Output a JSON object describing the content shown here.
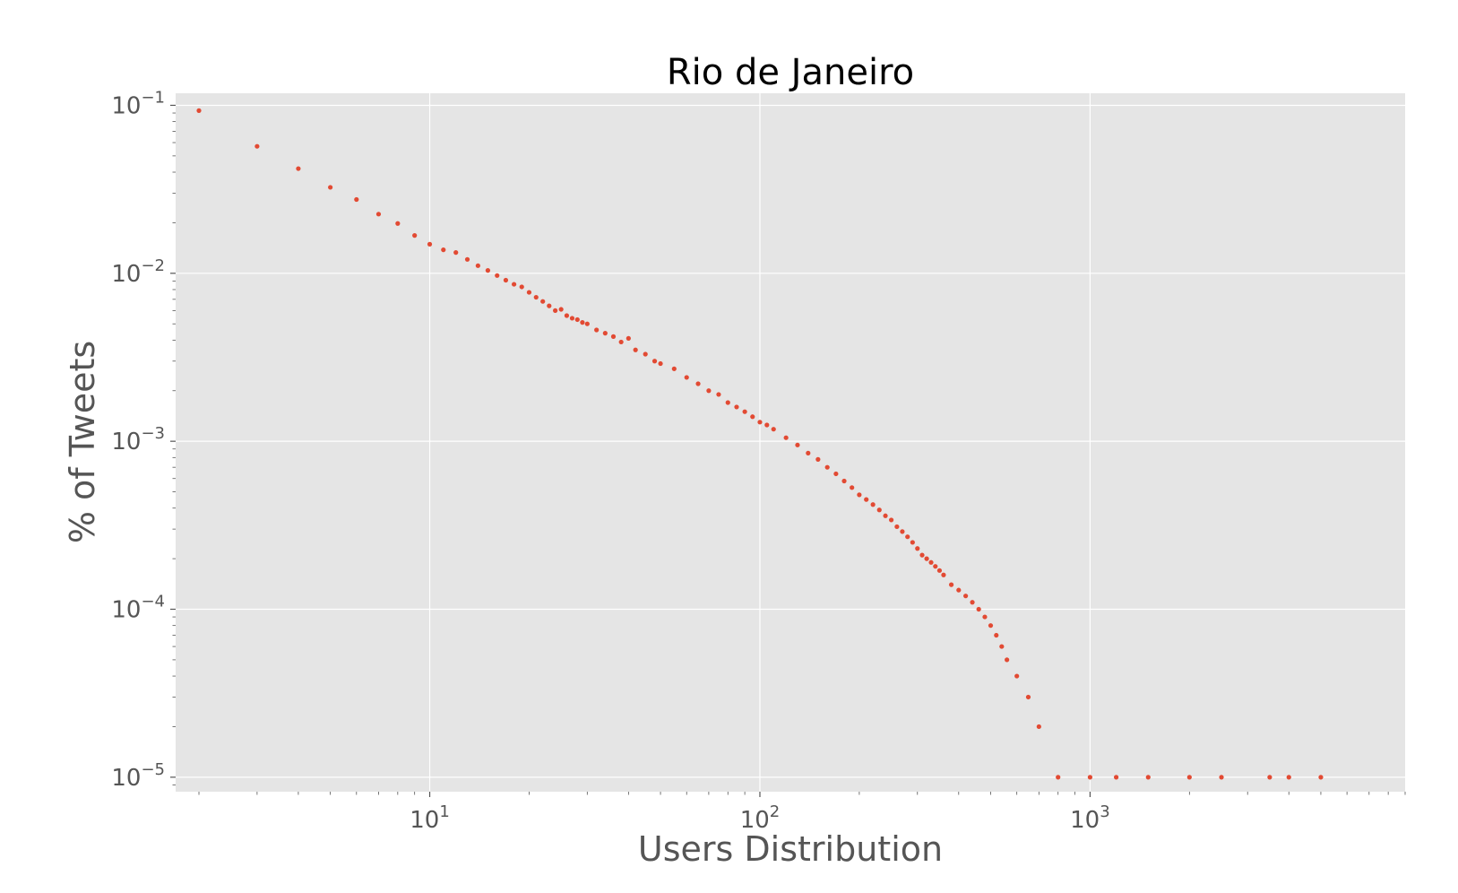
{
  "chart_data": {
    "type": "scatter",
    "title": "Rio de Janeiro",
    "xlabel": "Users Distribution",
    "ylabel": "% of Tweets",
    "xscale": "log",
    "yscale": "log",
    "xlim": [
      1.7,
      9000
    ],
    "ylim": [
      8.2e-06,
      0.118
    ],
    "x_ticks": [
      {
        "value": 10,
        "base": "10",
        "exp": "1"
      },
      {
        "value": 100,
        "base": "10",
        "exp": "2"
      },
      {
        "value": 1000,
        "base": "10",
        "exp": "3"
      }
    ],
    "y_ticks": [
      {
        "value": 0.1,
        "base": "10",
        "exp": "−1"
      },
      {
        "value": 0.01,
        "base": "10",
        "exp": "−2"
      },
      {
        "value": 0.001,
        "base": "10",
        "exp": "−3"
      },
      {
        "value": 0.0001,
        "base": "10",
        "exp": "−4"
      },
      {
        "value": 1e-05,
        "base": "10",
        "exp": "−5"
      }
    ],
    "grid": true,
    "point_color": "#e24a33",
    "background_color": "#e5e5e5",
    "points": [
      [
        2,
        0.093
      ],
      [
        3,
        0.057
      ],
      [
        4,
        0.042
      ],
      [
        5,
        0.0325
      ],
      [
        6,
        0.0275
      ],
      [
        7,
        0.0225
      ],
      [
        8,
        0.0198
      ],
      [
        9,
        0.0168
      ],
      [
        10,
        0.0149
      ],
      [
        11,
        0.0138
      ],
      [
        12,
        0.0133
      ],
      [
        13,
        0.0121
      ],
      [
        14,
        0.0111
      ],
      [
        15,
        0.0104
      ],
      [
        16,
        0.0097
      ],
      [
        17,
        0.0091
      ],
      [
        18,
        0.0086
      ],
      [
        19,
        0.0083
      ],
      [
        20,
        0.0077
      ],
      [
        21,
        0.0072
      ],
      [
        22,
        0.0068
      ],
      [
        23,
        0.0064
      ],
      [
        24,
        0.006
      ],
      [
        25,
        0.0061
      ],
      [
        26,
        0.0056
      ],
      [
        27,
        0.0054
      ],
      [
        28,
        0.0053
      ],
      [
        29,
        0.0051
      ],
      [
        30,
        0.005
      ],
      [
        32,
        0.0046
      ],
      [
        34,
        0.0044
      ],
      [
        36,
        0.0042
      ],
      [
        38,
        0.0039
      ],
      [
        40,
        0.0041
      ],
      [
        42,
        0.0035
      ],
      [
        45,
        0.0033
      ],
      [
        48,
        0.003
      ],
      [
        50,
        0.0029
      ],
      [
        55,
        0.0027
      ],
      [
        60,
        0.0024
      ],
      [
        65,
        0.0022
      ],
      [
        70,
        0.002
      ],
      [
        75,
        0.0019
      ],
      [
        80,
        0.0017
      ],
      [
        85,
        0.0016
      ],
      [
        90,
        0.0015
      ],
      [
        95,
        0.0014
      ],
      [
        100,
        0.0013
      ],
      [
        105,
        0.00125
      ],
      [
        110,
        0.00118
      ],
      [
        120,
        0.00105
      ],
      [
        130,
        0.00095
      ],
      [
        140,
        0.00085
      ],
      [
        150,
        0.00078
      ],
      [
        160,
        0.0007
      ],
      [
        170,
        0.00064
      ],
      [
        180,
        0.00058
      ],
      [
        190,
        0.00053
      ],
      [
        200,
        0.00048
      ],
      [
        210,
        0.00045
      ],
      [
        220,
        0.00042
      ],
      [
        230,
        0.00039
      ],
      [
        240,
        0.00036
      ],
      [
        250,
        0.00034
      ],
      [
        260,
        0.00031
      ],
      [
        270,
        0.00029
      ],
      [
        280,
        0.00027
      ],
      [
        290,
        0.00025
      ],
      [
        300,
        0.00023
      ],
      [
        310,
        0.00021
      ],
      [
        320,
        0.0002
      ],
      [
        330,
        0.00019
      ],
      [
        340,
        0.00018
      ],
      [
        350,
        0.00017
      ],
      [
        360,
        0.00016
      ],
      [
        380,
        0.00014
      ],
      [
        400,
        0.00013
      ],
      [
        420,
        0.00012
      ],
      [
        440,
        0.00011
      ],
      [
        460,
        0.0001
      ],
      [
        480,
        9e-05
      ],
      [
        500,
        8e-05
      ],
      [
        520,
        7e-05
      ],
      [
        540,
        6e-05
      ],
      [
        560,
        5e-05
      ],
      [
        600,
        4e-05
      ],
      [
        650,
        3e-05
      ],
      [
        700,
        2e-05
      ],
      [
        800,
        1e-05
      ],
      [
        1000,
        1e-05
      ],
      [
        1200,
        1e-05
      ],
      [
        1500,
        1e-05
      ],
      [
        2000,
        1e-05
      ],
      [
        2500,
        1e-05
      ],
      [
        3500,
        1e-05
      ],
      [
        4000,
        1e-05
      ],
      [
        5000,
        1e-05
      ]
    ]
  }
}
